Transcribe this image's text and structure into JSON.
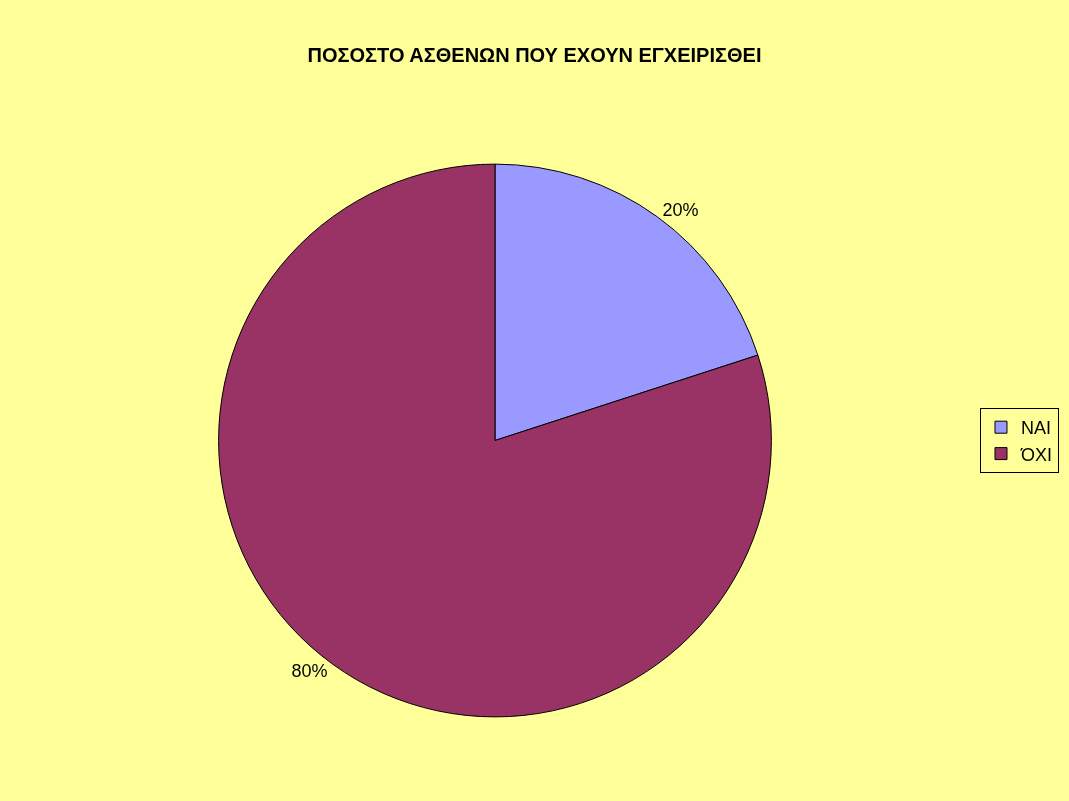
{
  "chart_data": {
    "type": "pie",
    "title": "ΠΟΣΟΣΤΟ ΑΣΘΕΝΩΝ ΠΟΥ ΕΧΟΥΝ ΕΓΧΕΙΡΙΣΘΕΙ",
    "categories": [
      "ΝΑΙ",
      "ΌΧΙ"
    ],
    "values": [
      20,
      80
    ],
    "value_labels": [
      "20%",
      "80%"
    ],
    "colors": [
      "#9999ff",
      "#993366"
    ],
    "legend": "right"
  }
}
